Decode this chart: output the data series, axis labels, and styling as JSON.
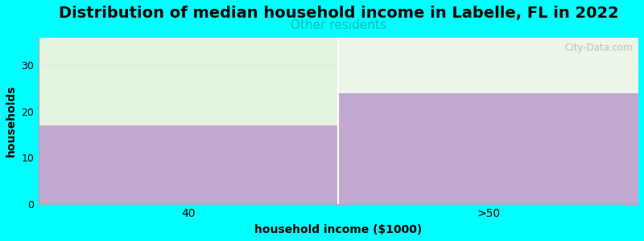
{
  "title": "Distribution of median household income in Labelle, FL in 2022",
  "subtitle": "Other residents",
  "xlabel": "household income ($1000)",
  "ylabel": "households",
  "categories": [
    "40",
    ">50"
  ],
  "values": [
    17,
    24
  ],
  "bar_color": "#C3A8D1",
  "background_color": "#00FFFF",
  "plot_bg_color": "#FFFFFF",
  "green_overlay_color": "#E0F0DC",
  "ylim": [
    0,
    36
  ],
  "yticks": [
    0,
    10,
    20,
    30
  ],
  "title_fontsize": 14,
  "subtitle_fontsize": 11,
  "subtitle_color": "#00BBBB",
  "axis_label_fontsize": 10,
  "watermark": "City-Data.com",
  "xlim": [
    0,
    2
  ]
}
